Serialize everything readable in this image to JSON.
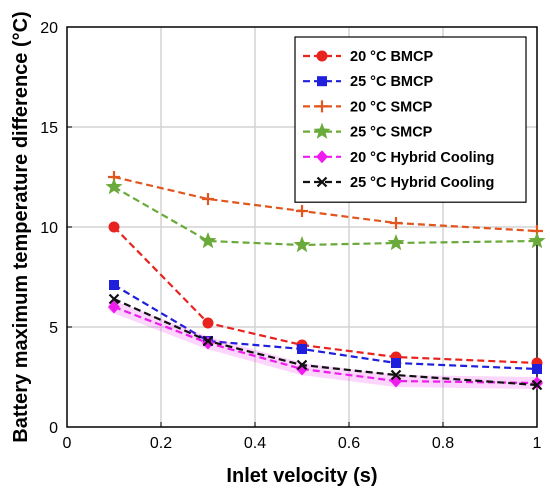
{
  "chart_data": {
    "type": "line",
    "title": "",
    "xlabel": "Inlet velocity (s)",
    "ylabel": "Battery maximum temperature difference (°C)",
    "xlim": [
      0,
      1
    ],
    "ylim": [
      0,
      20
    ],
    "xticks": [
      0,
      0.2,
      0.4,
      0.6,
      0.8,
      1
    ],
    "xtick_labels": [
      "0",
      "0.2",
      "0.4",
      "0.6",
      "0.8",
      "1"
    ],
    "yticks": [
      0,
      5,
      10,
      15,
      20
    ],
    "ytick_labels": [
      "0",
      "5",
      "10",
      "15",
      "20"
    ],
    "grid": true,
    "legend_position": "top-right",
    "x": [
      0.1,
      0.3,
      0.5,
      0.7,
      1.0
    ],
    "series": [
      {
        "name": "20 °C BMCP",
        "values": [
          10.0,
          5.2,
          4.1,
          3.5,
          3.2
        ],
        "color": "#e8231e",
        "marker": "circle"
      },
      {
        "name": "25 °C BMCP",
        "values": [
          7.1,
          4.3,
          3.9,
          3.2,
          2.9
        ],
        "color": "#1f1fdc",
        "marker": "square"
      },
      {
        "name": "20 °C SMCP",
        "values": [
          12.5,
          11.4,
          10.8,
          10.2,
          9.8
        ],
        "color": "#e0561e",
        "marker": "plus"
      },
      {
        "name": "25 °C SMCP",
        "values": [
          12.0,
          9.3,
          9.1,
          9.2,
          9.3
        ],
        "color": "#6aaa3a",
        "marker": "star"
      },
      {
        "name": "20 °C Hybrid Cooling",
        "values": [
          6.0,
          4.2,
          2.9,
          2.3,
          2.2
        ],
        "color": "#ee1dee",
        "marker": "diamond"
      },
      {
        "name": "25 °C Hybrid Cooling",
        "values": [
          6.4,
          4.3,
          3.1,
          2.6,
          2.1
        ],
        "color": "#111111",
        "marker": "cross"
      }
    ]
  }
}
